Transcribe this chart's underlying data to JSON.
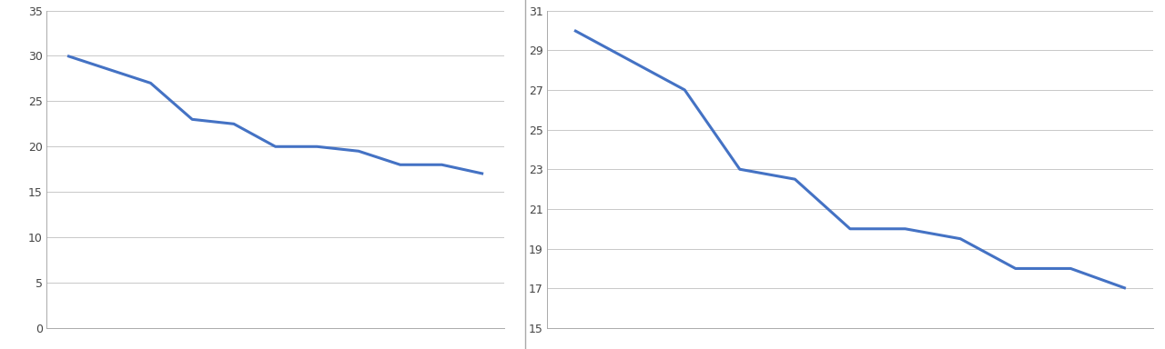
{
  "y_values": [
    30,
    28.5,
    27,
    23,
    22.5,
    20,
    20,
    19.5,
    18,
    18,
    17
  ],
  "line_color": "#4472C4",
  "line_width": 2.2,
  "left_ylim": [
    0,
    35
  ],
  "left_yticks": [
    0,
    5,
    10,
    15,
    20,
    25,
    30,
    35
  ],
  "right_ylim": [
    15,
    31
  ],
  "right_yticks": [
    15,
    17,
    19,
    21,
    23,
    25,
    27,
    29,
    31
  ],
  "grid_color": "#C8C8C8",
  "background_color": "#FFFFFF",
  "spine_color": "#AAAAAA",
  "tick_color": "#444444",
  "tick_fontsize": 9
}
